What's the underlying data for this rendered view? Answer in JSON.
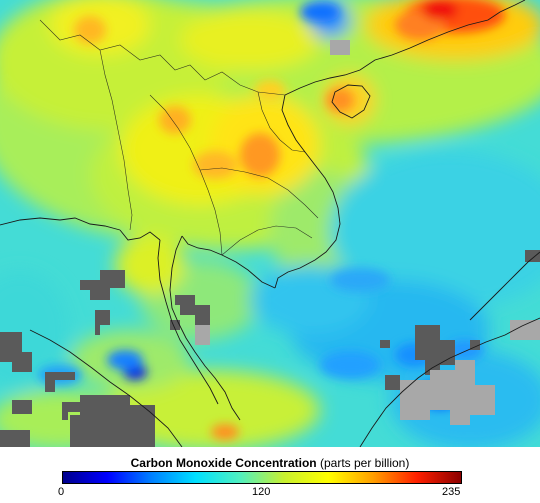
{
  "legend": {
    "title_bold": "Carbon Monoxide Concentration",
    "title_units": "(parts per billion)",
    "min_label": "0",
    "mid_label": "120",
    "max_label": "235",
    "colors": [
      "#00008c",
      "#0000ff",
      "#0080ff",
      "#00e0ff",
      "#50f0c0",
      "#c8f030",
      "#ffff00",
      "#ffa000",
      "#ff2000",
      "#8c0000"
    ]
  },
  "map": {
    "no_data_color": "#5a5a5a",
    "missing_color": "#a8a8a8",
    "coastline_color": "#1a1a1a"
  }
}
